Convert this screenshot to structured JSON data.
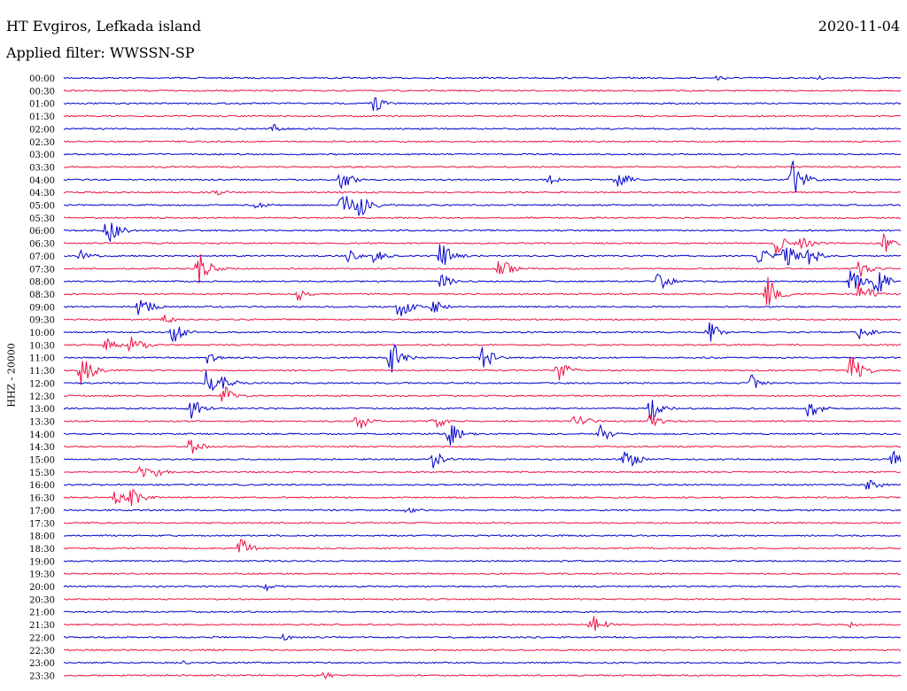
{
  "header": {
    "station": "HT Evgiros, Lefkada island",
    "filter": "Applied filter: WWSSN-SP",
    "date": "2020-11-04"
  },
  "chart_data": {
    "type": "line",
    "title": "HT Evgiros, Lefkada island",
    "ylabel": "HHZ - 20000",
    "trace_colors": [
      "#0000cc",
      "#ee1144"
    ],
    "time_labels": [
      "00:00",
      "00:30",
      "01:00",
      "01:30",
      "02:00",
      "02:30",
      "03:00",
      "03:30",
      "04:00",
      "04:30",
      "05:00",
      "05:30",
      "06:00",
      "06:30",
      "07:00",
      "07:30",
      "08:00",
      "08:30",
      "09:00",
      "09:30",
      "10:00",
      "10:30",
      "11:00",
      "11:30",
      "12:00",
      "12:30",
      "13:00",
      "13:30",
      "14:00",
      "14:30",
      "15:00",
      "15:30",
      "16:00",
      "16:30",
      "17:00",
      "17:30",
      "18:00",
      "18:30",
      "19:00",
      "19:30",
      "20:00",
      "20:30",
      "21:00",
      "21:30",
      "22:00",
      "22:30",
      "23:00",
      "23:30"
    ],
    "events": [
      {
        "row": 0,
        "x": 0.78,
        "amp": 5
      },
      {
        "row": 0,
        "x": 0.9,
        "amp": 3
      },
      {
        "row": 2,
        "x": 0.37,
        "amp": 12
      },
      {
        "row": 4,
        "x": 0.25,
        "amp": 6
      },
      {
        "row": 8,
        "x": 0.33,
        "amp": 15
      },
      {
        "row": 8,
        "x": 0.58,
        "amp": 6
      },
      {
        "row": 8,
        "x": 0.66,
        "amp": 14
      },
      {
        "row": 8,
        "x": 0.87,
        "amp": 26
      },
      {
        "row": 9,
        "x": 0.18,
        "amp": 6
      },
      {
        "row": 10,
        "x": 0.33,
        "amp": 20
      },
      {
        "row": 10,
        "x": 0.35,
        "amp": 25
      },
      {
        "row": 10,
        "x": 0.23,
        "amp": 5
      },
      {
        "row": 12,
        "x": 0.05,
        "amp": 22
      },
      {
        "row": 13,
        "x": 0.85,
        "amp": 14
      },
      {
        "row": 13,
        "x": 0.88,
        "amp": 10
      },
      {
        "row": 13,
        "x": 0.98,
        "amp": 12
      },
      {
        "row": 14,
        "x": 0.02,
        "amp": 8
      },
      {
        "row": 14,
        "x": 0.34,
        "amp": 8
      },
      {
        "row": 14,
        "x": 0.37,
        "amp": 10
      },
      {
        "row": 14,
        "x": 0.45,
        "amp": 18
      },
      {
        "row": 14,
        "x": 0.83,
        "amp": 14
      },
      {
        "row": 14,
        "x": 0.86,
        "amp": 18
      },
      {
        "row": 14,
        "x": 0.89,
        "amp": 12
      },
      {
        "row": 15,
        "x": 0.16,
        "amp": 22
      },
      {
        "row": 15,
        "x": 0.52,
        "amp": 16
      },
      {
        "row": 15,
        "x": 0.95,
        "amp": 12
      },
      {
        "row": 16,
        "x": 0.45,
        "amp": 10
      },
      {
        "row": 16,
        "x": 0.71,
        "amp": 14
      },
      {
        "row": 16,
        "x": 0.94,
        "amp": 16
      },
      {
        "row": 16,
        "x": 0.97,
        "amp": 20
      },
      {
        "row": 17,
        "x": 0.28,
        "amp": 10
      },
      {
        "row": 17,
        "x": 0.84,
        "amp": 22
      },
      {
        "row": 17,
        "x": 0.95,
        "amp": 18
      },
      {
        "row": 18,
        "x": 0.09,
        "amp": 15
      },
      {
        "row": 18,
        "x": 0.4,
        "amp": 16
      },
      {
        "row": 18,
        "x": 0.44,
        "amp": 10
      },
      {
        "row": 19,
        "x": 0.12,
        "amp": 8
      },
      {
        "row": 20,
        "x": 0.13,
        "amp": 14
      },
      {
        "row": 20,
        "x": 0.77,
        "amp": 14
      },
      {
        "row": 20,
        "x": 0.95,
        "amp": 10
      },
      {
        "row": 21,
        "x": 0.05,
        "amp": 10
      },
      {
        "row": 21,
        "x": 0.08,
        "amp": 16
      },
      {
        "row": 22,
        "x": 0.39,
        "amp": 22
      },
      {
        "row": 22,
        "x": 0.5,
        "amp": 16
      },
      {
        "row": 22,
        "x": 0.17,
        "amp": 8
      },
      {
        "row": 23,
        "x": 0.02,
        "amp": 22
      },
      {
        "row": 23,
        "x": 0.59,
        "amp": 14
      },
      {
        "row": 23,
        "x": 0.94,
        "amp": 24
      },
      {
        "row": 24,
        "x": 0.17,
        "amp": 16
      },
      {
        "row": 24,
        "x": 0.19,
        "amp": 10
      },
      {
        "row": 24,
        "x": 0.82,
        "amp": 12
      },
      {
        "row": 25,
        "x": 0.19,
        "amp": 14
      },
      {
        "row": 26,
        "x": 0.15,
        "amp": 16
      },
      {
        "row": 26,
        "x": 0.7,
        "amp": 16
      },
      {
        "row": 26,
        "x": 0.89,
        "amp": 14
      },
      {
        "row": 27,
        "x": 0.35,
        "amp": 14
      },
      {
        "row": 27,
        "x": 0.44,
        "amp": 14
      },
      {
        "row": 27,
        "x": 0.61,
        "amp": 14
      },
      {
        "row": 27,
        "x": 0.7,
        "amp": 10
      },
      {
        "row": 28,
        "x": 0.46,
        "amp": 16
      },
      {
        "row": 28,
        "x": 0.64,
        "amp": 12
      },
      {
        "row": 29,
        "x": 0.15,
        "amp": 12
      },
      {
        "row": 30,
        "x": 0.44,
        "amp": 12
      },
      {
        "row": 30,
        "x": 0.67,
        "amp": 16
      },
      {
        "row": 30,
        "x": 0.99,
        "amp": 14
      },
      {
        "row": 31,
        "x": 0.09,
        "amp": 8
      },
      {
        "row": 31,
        "x": 0.11,
        "amp": 6
      },
      {
        "row": 32,
        "x": 0.96,
        "amp": 10
      },
      {
        "row": 33,
        "x": 0.08,
        "amp": 14
      },
      {
        "row": 33,
        "x": 0.06,
        "amp": 10
      },
      {
        "row": 34,
        "x": 0.41,
        "amp": 6
      },
      {
        "row": 37,
        "x": 0.21,
        "amp": 16
      },
      {
        "row": 40,
        "x": 0.24,
        "amp": 6
      },
      {
        "row": 43,
        "x": 0.63,
        "amp": 14
      },
      {
        "row": 43,
        "x": 0.94,
        "amp": 4
      },
      {
        "row": 44,
        "x": 0.26,
        "amp": 5
      },
      {
        "row": 44,
        "x": 0.18,
        "amp": 3
      },
      {
        "row": 46,
        "x": 0.14,
        "amp": 3
      },
      {
        "row": 47,
        "x": 0.31,
        "amp": 5
      }
    ]
  }
}
